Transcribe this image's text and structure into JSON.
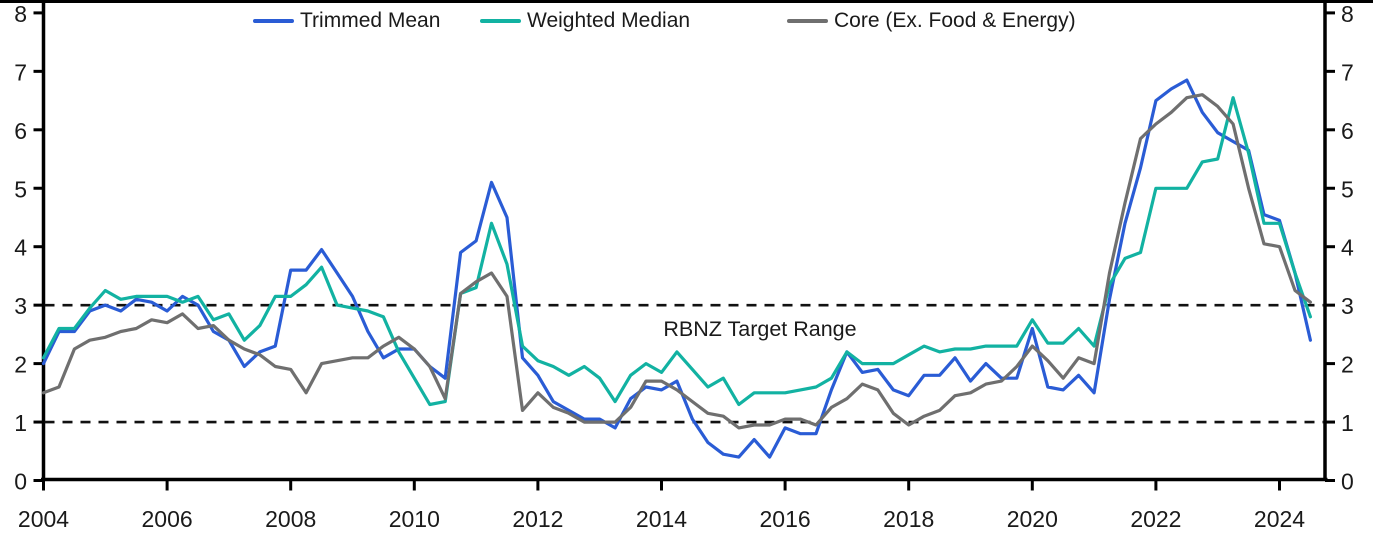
{
  "chart_data": {
    "type": "line",
    "title": "",
    "frequency": "quarterly",
    "x_axis": {
      "first_point": "2004 Q1",
      "last_point": "2024 Q3",
      "start_year": 2004,
      "step_years": 0.25,
      "label_years": [
        2004,
        2006,
        2008,
        2010,
        2012,
        2014,
        2016,
        2018,
        2020,
        2022,
        2024
      ]
    },
    "y_axis": {
      "min": 0,
      "max": 8,
      "ticks": [
        0,
        1,
        2,
        3,
        4,
        5,
        6,
        7,
        8
      ],
      "sides": "both",
      "grid": false
    },
    "target_range": {
      "low": 1,
      "high": 3,
      "label": "RBNZ Target Range",
      "line_style": "dashed",
      "line_color": "#111111"
    },
    "legend_position": "top",
    "series": [
      {
        "name": "Trimmed Mean",
        "color": "#2a5cd5",
        "values": [
          2.0,
          2.55,
          2.55,
          2.9,
          3.0,
          2.9,
          3.1,
          3.05,
          2.9,
          3.15,
          3.0,
          2.55,
          2.4,
          1.95,
          2.2,
          2.3,
          3.6,
          3.6,
          3.95,
          3.55,
          3.15,
          2.55,
          2.1,
          2.25,
          2.25,
          1.95,
          1.75,
          3.9,
          4.1,
          5.1,
          4.5,
          2.1,
          1.8,
          1.35,
          1.2,
          1.05,
          1.05,
          0.9,
          1.4,
          1.6,
          1.55,
          1.7,
          1.05,
          0.65,
          0.45,
          0.4,
          0.7,
          0.4,
          0.9,
          0.8,
          0.8,
          1.55,
          2.2,
          1.85,
          1.9,
          1.55,
          1.45,
          1.8,
          1.8,
          2.1,
          1.7,
          2.0,
          1.75,
          1.75,
          2.6,
          1.6,
          1.55,
          1.8,
          1.5,
          3.1,
          4.4,
          5.35,
          6.5,
          6.7,
          6.85,
          6.3,
          5.95,
          5.8,
          5.65,
          4.55,
          4.45,
          3.55,
          2.4
        ]
      },
      {
        "name": "Weighted Median",
        "color": "#12b2a2",
        "values": [
          2.1,
          2.6,
          2.6,
          2.95,
          3.25,
          3.1,
          3.15,
          3.15,
          3.15,
          3.05,
          3.15,
          2.75,
          2.85,
          2.4,
          2.65,
          3.15,
          3.15,
          3.35,
          3.65,
          3.0,
          2.95,
          2.9,
          2.8,
          2.2,
          1.75,
          1.3,
          1.35,
          3.2,
          3.3,
          4.4,
          3.7,
          2.3,
          2.05,
          1.95,
          1.8,
          1.95,
          1.75,
          1.35,
          1.8,
          2.0,
          1.85,
          2.2,
          1.9,
          1.6,
          1.75,
          1.3,
          1.5,
          1.5,
          1.5,
          1.55,
          1.6,
          1.75,
          2.2,
          2.0,
          2.0,
          2.0,
          2.15,
          2.3,
          2.2,
          2.25,
          2.25,
          2.3,
          2.3,
          2.3,
          2.75,
          2.35,
          2.35,
          2.6,
          2.3,
          3.35,
          3.8,
          3.9,
          5.0,
          5.0,
          5.0,
          5.45,
          5.5,
          6.55,
          5.6,
          4.4,
          4.4,
          3.55,
          2.8
        ]
      },
      {
        "name": "Core (Ex. Food & Energy)",
        "color": "#6f6f6f",
        "values": [
          1.5,
          1.6,
          2.25,
          2.4,
          2.45,
          2.55,
          2.6,
          2.75,
          2.7,
          2.85,
          2.6,
          2.65,
          2.4,
          2.25,
          2.15,
          1.95,
          1.9,
          1.5,
          2.0,
          2.05,
          2.1,
          2.1,
          2.3,
          2.45,
          2.25,
          1.95,
          1.4,
          3.2,
          3.4,
          3.55,
          3.15,
          1.2,
          1.5,
          1.25,
          1.15,
          1.0,
          1.0,
          1.0,
          1.25,
          1.7,
          1.7,
          1.55,
          1.35,
          1.15,
          1.1,
          0.9,
          0.95,
          0.95,
          1.05,
          1.05,
          0.95,
          1.25,
          1.4,
          1.65,
          1.55,
          1.15,
          0.95,
          1.1,
          1.2,
          1.45,
          1.5,
          1.65,
          1.7,
          1.95,
          2.3,
          2.05,
          1.75,
          2.1,
          2.0,
          3.55,
          4.75,
          5.85,
          6.1,
          6.3,
          6.55,
          6.6,
          6.4,
          6.1,
          5.0,
          4.05,
          4.0,
          3.25,
          3.05
        ]
      }
    ]
  }
}
